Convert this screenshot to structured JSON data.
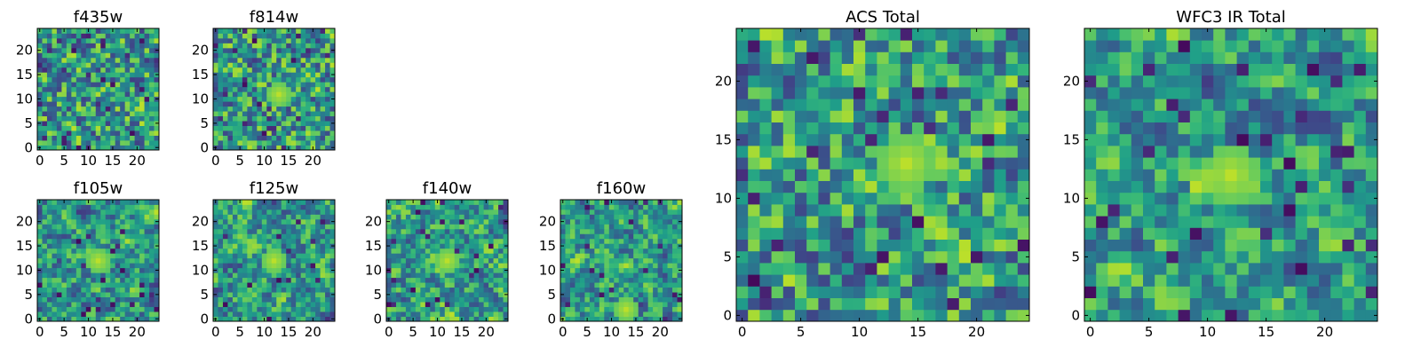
{
  "chart_data": [
    {
      "type": "heatmap",
      "title": "f435w",
      "colormap": "viridis",
      "xlim": [
        -0.5,
        24.5
      ],
      "ylim": [
        -0.5,
        24.5
      ],
      "x_ticks": [
        "0",
        "5",
        "10",
        "15",
        "20"
      ],
      "y_ticks": [
        "0",
        "5",
        "10",
        "15",
        "20"
      ],
      "grid": false,
      "rows": 25,
      "cols": 25,
      "pixel_values": "random noise",
      "vmin": 0,
      "vmax": 1,
      "seed": 11,
      "smooth": 0.1,
      "hot_spot": null
    },
    {
      "type": "heatmap",
      "title": "f814w",
      "colormap": "viridis",
      "xlim": [
        -0.5,
        24.5
      ],
      "ylim": [
        -0.5,
        24.5
      ],
      "x_ticks": [
        "0",
        "5",
        "10",
        "15",
        "20"
      ],
      "y_ticks": [
        "0",
        "5",
        "10",
        "15",
        "20"
      ],
      "grid": false,
      "rows": 25,
      "cols": 25,
      "pixel_values": "random noise",
      "vmin": 0,
      "vmax": 1,
      "seed": 23,
      "smooth": 0.15,
      "hot_spot": [
        13,
        11
      ]
    },
    {
      "type": "heatmap",
      "title": "f105w",
      "colormap": "viridis",
      "xlim": [
        -0.5,
        24.5
      ],
      "ylim": [
        -0.5,
        24.5
      ],
      "x_ticks": [
        "0",
        "5",
        "10",
        "15",
        "20"
      ],
      "y_ticks": [
        "0",
        "5",
        "10",
        "15",
        "20"
      ],
      "grid": false,
      "rows": 25,
      "cols": 25,
      "pixel_values": "random noise",
      "vmin": 0,
      "vmax": 1,
      "seed": 37,
      "smooth": 0.45,
      "hot_spot": [
        12,
        12
      ]
    },
    {
      "type": "heatmap",
      "title": "f125w",
      "colormap": "viridis",
      "xlim": [
        -0.5,
        24.5
      ],
      "ylim": [
        -0.5,
        24.5
      ],
      "x_ticks": [
        "0",
        "5",
        "10",
        "15",
        "20"
      ],
      "y_ticks": [
        "0",
        "5",
        "10",
        "15",
        "20"
      ],
      "grid": false,
      "rows": 25,
      "cols": 25,
      "pixel_values": "random noise",
      "vmin": 0,
      "vmax": 1,
      "seed": 41,
      "smooth": 0.45,
      "hot_spot": [
        12,
        12
      ]
    },
    {
      "type": "heatmap",
      "title": "f140w",
      "colormap": "viridis",
      "xlim": [
        -0.5,
        24.5
      ],
      "ylim": [
        -0.5,
        24.5
      ],
      "x_ticks": [
        "0",
        "5",
        "10",
        "15",
        "20"
      ],
      "y_ticks": [
        "0",
        "5",
        "10",
        "15",
        "20"
      ],
      "grid": false,
      "rows": 25,
      "cols": 25,
      "pixel_values": "random noise",
      "vmin": 0,
      "vmax": 1,
      "seed": 53,
      "smooth": 0.45,
      "hot_spot": [
        12,
        12
      ]
    },
    {
      "type": "heatmap",
      "title": "f160w",
      "colormap": "viridis",
      "xlim": [
        -0.5,
        24.5
      ],
      "ylim": [
        -0.5,
        24.5
      ],
      "x_ticks": [
        "0",
        "5",
        "10",
        "15",
        "20"
      ],
      "y_ticks": [
        "0",
        "5",
        "10",
        "15",
        "20"
      ],
      "grid": false,
      "rows": 25,
      "cols": 25,
      "pixel_values": "random noise",
      "vmin": 0,
      "vmax": 1,
      "seed": 67,
      "smooth": 0.5,
      "hot_spot": [
        13,
        2
      ]
    },
    {
      "type": "heatmap",
      "title": "ACS Total",
      "colormap": "viridis",
      "xlim": [
        -0.5,
        24.5
      ],
      "ylim": [
        -0.5,
        24.5
      ],
      "x_ticks": [
        "0",
        "5",
        "10",
        "15",
        "20"
      ],
      "y_ticks": [
        "0",
        "5",
        "10",
        "15",
        "20"
      ],
      "grid": false,
      "rows": 25,
      "cols": 25,
      "pixel_values": "random noise",
      "vmin": 0,
      "vmax": 1,
      "seed": 79,
      "smooth": 0.25,
      "hot_spot": [
        14,
        13
      ]
    },
    {
      "type": "heatmap",
      "title": "WFC3 IR Total",
      "colormap": "viridis",
      "xlim": [
        -0.5,
        24.5
      ],
      "ylim": [
        -0.5,
        24.5
      ],
      "x_ticks": [
        "0",
        "5",
        "10",
        "15",
        "20"
      ],
      "y_ticks": [
        "0",
        "5",
        "10",
        "15",
        "20"
      ],
      "grid": false,
      "rows": 25,
      "cols": 25,
      "pixel_values": "random noise",
      "vmin": 0,
      "vmax": 1,
      "seed": 97,
      "smooth": 0.55,
      "hot_spot": [
        12,
        12
      ]
    }
  ]
}
